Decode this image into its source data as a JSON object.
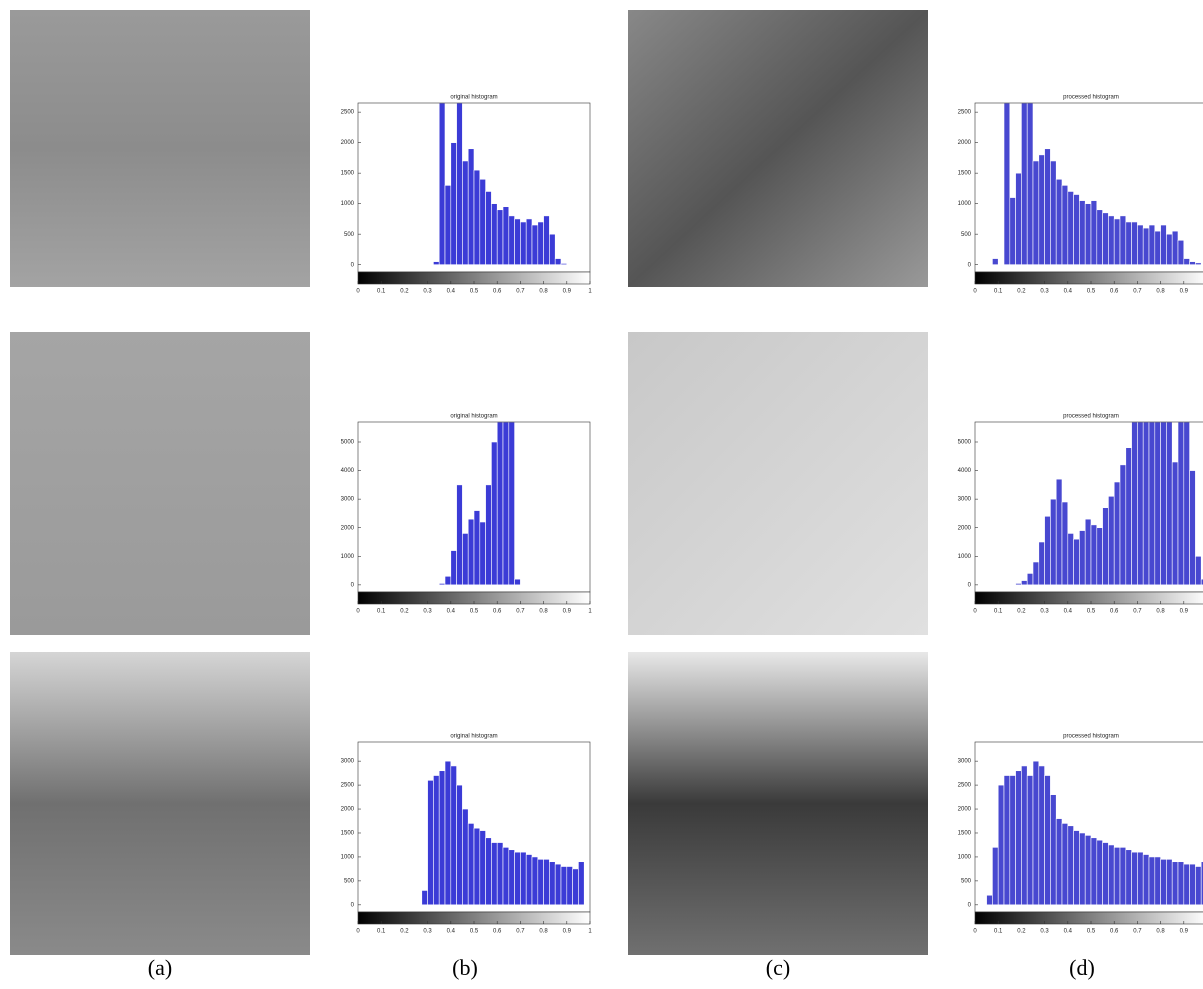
{
  "captions": [
    "(a)",
    "(b)",
    "(c)",
    "(d)"
  ],
  "chart_data": [
    {
      "type": "histogram",
      "title": "original histogram",
      "color": "#3b3bd6",
      "bins": [
        0,
        0.025,
        0.05,
        0.075,
        0.1,
        0.125,
        0.15,
        0.175,
        0.2,
        0.225,
        0.25,
        0.275,
        0.3,
        0.325,
        0.35,
        0.375,
        0.4,
        0.425,
        0.45,
        0.475,
        0.5,
        0.525,
        0.55,
        0.575,
        0.6,
        0.625,
        0.65,
        0.675,
        0.7,
        0.725,
        0.75,
        0.775,
        0.8,
        0.825,
        0.85,
        0.875,
        0.9,
        0.925,
        0.95,
        0.975,
        1
      ],
      "counts": [
        0,
        0,
        0,
        0,
        0,
        0,
        0,
        0,
        0,
        0,
        0,
        0,
        0,
        50,
        2650,
        1300,
        2000,
        2650,
        1700,
        1900,
        1550,
        1400,
        1200,
        1000,
        900,
        950,
        800,
        750,
        700,
        750,
        650,
        700,
        800,
        500,
        100,
        20,
        0,
        0,
        0,
        0
      ],
      "xlim": [
        0,
        1
      ],
      "xticks": [
        0,
        0.1,
        0.2,
        0.3,
        0.4,
        0.5,
        0.6,
        0.7,
        0.8,
        0.9,
        1
      ],
      "ylim": [
        -120,
        2650
      ],
      "yticks": [
        0,
        500,
        1000,
        1500,
        2000,
        2500
      ]
    },
    {
      "type": "histogram",
      "title": "processed histogram",
      "color": "#4848d0",
      "bins": [
        0,
        0.025,
        0.05,
        0.075,
        0.1,
        0.125,
        0.15,
        0.175,
        0.2,
        0.225,
        0.25,
        0.275,
        0.3,
        0.325,
        0.35,
        0.375,
        0.4,
        0.425,
        0.45,
        0.475,
        0.5,
        0.525,
        0.55,
        0.575,
        0.6,
        0.625,
        0.65,
        0.675,
        0.7,
        0.725,
        0.75,
        0.775,
        0.8,
        0.825,
        0.85,
        0.875,
        0.9,
        0.925,
        0.95,
        0.975,
        1
      ],
      "counts": [
        0,
        0,
        0,
        100,
        0,
        2650,
        1100,
        1500,
        2650,
        2650,
        1700,
        1800,
        1900,
        1700,
        1400,
        1300,
        1200,
        1150,
        1050,
        1000,
        1050,
        900,
        850,
        800,
        750,
        800,
        700,
        700,
        650,
        600,
        650,
        550,
        650,
        500,
        550,
        400,
        100,
        50,
        30,
        0
      ],
      "xlim": [
        0,
        1
      ],
      "xticks": [
        0,
        0.1,
        0.2,
        0.3,
        0.4,
        0.5,
        0.6,
        0.7,
        0.8,
        0.9,
        1
      ],
      "ylim": [
        -120,
        2650
      ],
      "yticks": [
        0,
        500,
        1000,
        1500,
        2000,
        2500
      ]
    },
    {
      "type": "histogram",
      "title": "original histogram",
      "color": "#3b3bd6",
      "bins": [
        0,
        0.025,
        0.05,
        0.075,
        0.1,
        0.125,
        0.15,
        0.175,
        0.2,
        0.225,
        0.25,
        0.275,
        0.3,
        0.325,
        0.35,
        0.375,
        0.4,
        0.425,
        0.45,
        0.475,
        0.5,
        0.525,
        0.55,
        0.575,
        0.6,
        0.625,
        0.65,
        0.675,
        0.7,
        0.725,
        0.75,
        0.775,
        0.8,
        0.825,
        0.85,
        0.875,
        0.9,
        0.925,
        0.95,
        0.975,
        1
      ],
      "counts": [
        0,
        0,
        0,
        0,
        0,
        0,
        0,
        0,
        0,
        0,
        0,
        0,
        0,
        0,
        50,
        300,
        1200,
        3500,
        1800,
        2300,
        2600,
        2200,
        3500,
        5000,
        5700,
        5700,
        5700,
        200,
        0,
        0,
        0,
        0,
        0,
        0,
        0,
        0,
        0,
        0,
        0,
        0
      ],
      "xlim": [
        0,
        1
      ],
      "xticks": [
        0,
        0.1,
        0.2,
        0.3,
        0.4,
        0.5,
        0.6,
        0.7,
        0.8,
        0.9,
        1
      ],
      "ylim": [
        -250,
        5700
      ],
      "yticks": [
        0,
        1000,
        2000,
        3000,
        4000,
        5000
      ]
    },
    {
      "type": "histogram",
      "title": "processed histogram",
      "color": "#4848d0",
      "bins": [
        0,
        0.025,
        0.05,
        0.075,
        0.1,
        0.125,
        0.15,
        0.175,
        0.2,
        0.225,
        0.25,
        0.275,
        0.3,
        0.325,
        0.35,
        0.375,
        0.4,
        0.425,
        0.45,
        0.475,
        0.5,
        0.525,
        0.55,
        0.575,
        0.6,
        0.625,
        0.65,
        0.675,
        0.7,
        0.725,
        0.75,
        0.775,
        0.8,
        0.825,
        0.85,
        0.875,
        0.9,
        0.925,
        0.95,
        0.975,
        1
      ],
      "counts": [
        0,
        0,
        0,
        0,
        0,
        0,
        0,
        50,
        150,
        400,
        800,
        1500,
        2400,
        3000,
        3700,
        2900,
        1800,
        1600,
        1900,
        2300,
        2100,
        2000,
        2700,
        3100,
        3600,
        4200,
        4800,
        5700,
        5700,
        5700,
        5700,
        5700,
        5700,
        5700,
        4300,
        5700,
        5700,
        4000,
        1000,
        200
      ],
      "xlim": [
        0,
        1
      ],
      "xticks": [
        0,
        0.1,
        0.2,
        0.3,
        0.4,
        0.5,
        0.6,
        0.7,
        0.8,
        0.9,
        1
      ],
      "ylim": [
        -250,
        5700
      ],
      "yticks": [
        0,
        1000,
        2000,
        3000,
        4000,
        5000
      ]
    },
    {
      "type": "histogram",
      "title": "original histogram",
      "color": "#3b3bd6",
      "bins": [
        0,
        0.025,
        0.05,
        0.075,
        0.1,
        0.125,
        0.15,
        0.175,
        0.2,
        0.225,
        0.25,
        0.275,
        0.3,
        0.325,
        0.35,
        0.375,
        0.4,
        0.425,
        0.45,
        0.475,
        0.5,
        0.525,
        0.55,
        0.575,
        0.6,
        0.625,
        0.65,
        0.675,
        0.7,
        0.725,
        0.75,
        0.775,
        0.8,
        0.825,
        0.85,
        0.875,
        0.9,
        0.925,
        0.95,
        0.975,
        1
      ],
      "counts": [
        0,
        0,
        0,
        0,
        0,
        0,
        0,
        0,
        0,
        0,
        0,
        300,
        2600,
        2700,
        2800,
        3000,
        2900,
        2500,
        2000,
        1700,
        1600,
        1550,
        1400,
        1300,
        1300,
        1200,
        1150,
        1100,
        1100,
        1050,
        1000,
        950,
        950,
        900,
        850,
        800,
        800,
        750,
        900,
        0
      ],
      "xlim": [
        0,
        1
      ],
      "xticks": [
        0,
        0.1,
        0.2,
        0.3,
        0.4,
        0.5,
        0.6,
        0.7,
        0.8,
        0.9,
        1
      ],
      "ylim": [
        -150,
        3400
      ],
      "yticks": [
        0,
        500,
        1000,
        1500,
        2000,
        2500,
        3000
      ]
    },
    {
      "type": "histogram",
      "title": "processed histogram",
      "color": "#4848d0",
      "bins": [
        0,
        0.025,
        0.05,
        0.075,
        0.1,
        0.125,
        0.15,
        0.175,
        0.2,
        0.225,
        0.25,
        0.275,
        0.3,
        0.325,
        0.35,
        0.375,
        0.4,
        0.425,
        0.45,
        0.475,
        0.5,
        0.525,
        0.55,
        0.575,
        0.6,
        0.625,
        0.65,
        0.675,
        0.7,
        0.725,
        0.75,
        0.775,
        0.8,
        0.825,
        0.85,
        0.875,
        0.9,
        0.925,
        0.95,
        0.975,
        1
      ],
      "counts": [
        0,
        0,
        200,
        1200,
        2500,
        2700,
        2700,
        2800,
        2900,
        2700,
        3000,
        2900,
        2700,
        2300,
        1800,
        1700,
        1650,
        1550,
        1500,
        1450,
        1400,
        1350,
        1300,
        1250,
        1200,
        1200,
        1150,
        1100,
        1100,
        1050,
        1000,
        1000,
        950,
        950,
        900,
        900,
        850,
        850,
        800,
        900
      ],
      "xlim": [
        0,
        1
      ],
      "xticks": [
        0,
        0.1,
        0.2,
        0.3,
        0.4,
        0.5,
        0.6,
        0.7,
        0.8,
        0.9,
        1
      ],
      "ylim": [
        -150,
        3400
      ],
      "yticks": [
        0,
        500,
        1000,
        1500,
        2000,
        2500,
        3000
      ]
    }
  ]
}
